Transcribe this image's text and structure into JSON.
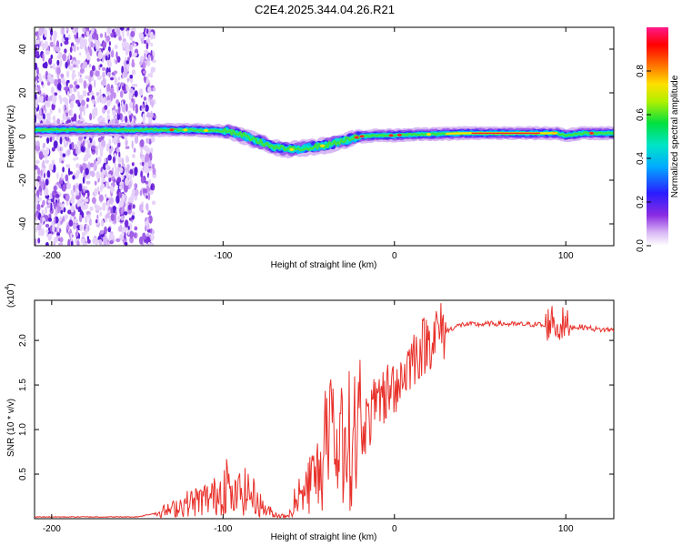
{
  "chart_data": [
    {
      "type": "heatmap",
      "title": "C2E4.2025.344.04.26.R21",
      "xlabel": "Height of straight line (km)",
      "ylabel": "Frequency (Hz)",
      "xlim": [
        -210,
        128
      ],
      "ylim": [
        -50,
        50
      ],
      "xticks": [
        -200,
        -100,
        0,
        100
      ],
      "yticks": [
        -40,
        -20,
        0,
        20,
        40
      ],
      "colorbar": {
        "label": "Normalized spectral amplitude",
        "range": [
          0,
          1
        ],
        "ticks": [
          "0.0",
          "0.2",
          "0.4",
          "0.6",
          "0.8"
        ],
        "colormap": "rainbow (white-purple-blue-cyan-green-yellow-red-magenta)"
      },
      "ridge": {
        "x": [
          -210,
          -170,
          -150,
          -140,
          -120,
          -100,
          -90,
          -80,
          -70,
          -60,
          -50,
          -40,
          -30,
          -20,
          -10,
          0,
          10,
          20,
          40,
          60,
          80,
          90,
          95,
          100,
          110,
          128
        ],
        "freq": [
          3,
          3,
          3,
          3,
          3,
          2.5,
          1,
          -2,
          -5,
          -6,
          -5,
          -4,
          -2,
          0,
          0.5,
          0.5,
          1,
          1,
          1.5,
          1.5,
          1.5,
          1.5,
          1.5,
          0.5,
          1.5,
          1.5
        ]
      }
    },
    {
      "type": "line",
      "xlabel": "Height of straight line (km)",
      "ylabel": "SNR (10 * v/v)",
      "scale_label": "(x10",
      "scale_exp": "4",
      "xlim": [
        -210,
        128
      ],
      "ylim": [
        0,
        2.45
      ],
      "xticks": [
        -200,
        -100,
        0,
        100
      ],
      "yticks": [
        "0.5",
        "1.0",
        "1.5",
        "2.0"
      ],
      "color": "#e8302a",
      "series": [
        {
          "name": "SNR",
          "x": [
            -210,
            -150,
            -140,
            -130,
            -125,
            -115,
            -105,
            -100,
            -98,
            -95,
            -90,
            -85,
            -80,
            -78,
            -75,
            -70,
            -65,
            -60,
            -55,
            -50,
            -45,
            -42,
            -40,
            -38,
            -35,
            -30,
            -25,
            -20,
            -15,
            -10,
            -5,
            0,
            5,
            10,
            15,
            20,
            25,
            30,
            35,
            40,
            50,
            60,
            70,
            80,
            85,
            88,
            90,
            93,
            95,
            97,
            100,
            105,
            110,
            120,
            128
          ],
          "y": [
            0.02,
            0.02,
            0.06,
            0.1,
            0.15,
            0.2,
            0.25,
            0.35,
            0.45,
            0.2,
            0.3,
            0.3,
            0.2,
            0.15,
            0.1,
            0.05,
            0.03,
            0.06,
            0.2,
            0.4,
            0.5,
            0.6,
            0.7,
            0.8,
            0.8,
            0.85,
            0.9,
            1.0,
            1.1,
            1.3,
            1.4,
            1.5,
            1.6,
            1.8,
            1.9,
            2.0,
            2.1,
            2.1,
            2.15,
            2.18,
            2.18,
            2.19,
            2.18,
            2.18,
            2.18,
            2.15,
            2.2,
            2.25,
            2.1,
            2.2,
            2.15,
            2.15,
            2.15,
            2.12,
            2.12
          ]
        }
      ]
    }
  ]
}
